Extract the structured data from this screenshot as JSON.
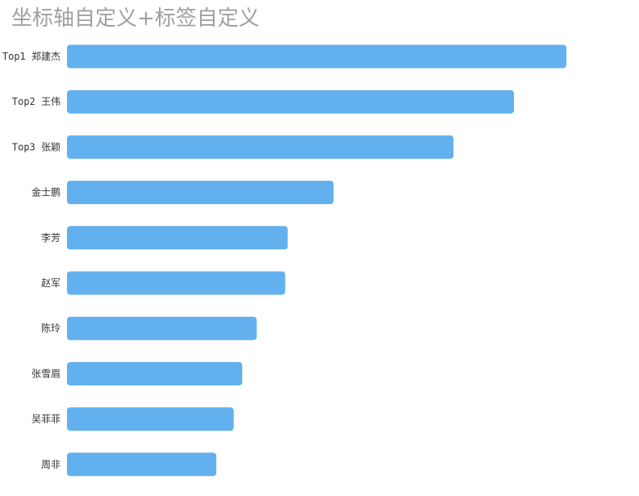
{
  "chart_data": {
    "type": "bar",
    "orientation": "horizontal",
    "title": "坐标轴自定义+标签自定义",
    "categories": [
      "Top1 郑建杰",
      "Top2 王伟",
      "Top3 张颖",
      "金士鹏",
      "李芳",
      "赵军",
      "陈玲",
      "张雪眉",
      "吴菲菲",
      "周非"
    ],
    "values": [
      100,
      89.5,
      77.4,
      53.4,
      44.2,
      43.7,
      38,
      35.1,
      33.4,
      29.9
    ],
    "xlim": [
      0,
      100
    ],
    "grid": false,
    "legend": "none",
    "bar_color": "#62b0ee"
  }
}
